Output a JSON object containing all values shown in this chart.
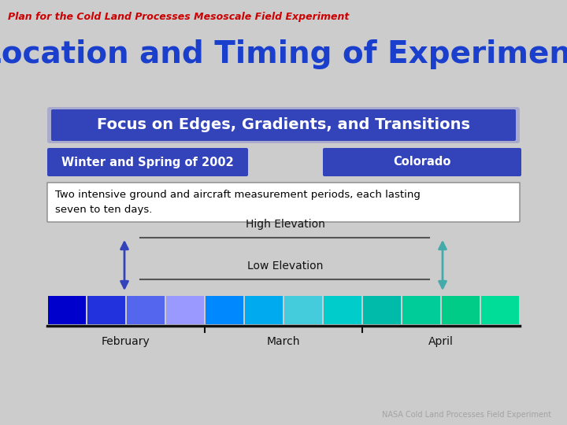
{
  "title_top": "Plan for the Cold Land Processes Mesoscale Field Experiment",
  "title_main": "Location and Timing of Experiment",
  "focus_text": "Focus on Edges, Gradients, and Transitions",
  "box1_text": "Winter and Spring of 2002",
  "box2_text": "Colorado",
  "body_text": "Two intensive ground and aircraft measurement periods, each lasting\nseven to ten days.",
  "high_elev_label": "High Elevation",
  "low_elev_label": "Low Elevation",
  "month_labels": [
    "February",
    "March",
    "April"
  ],
  "footer_text": "NASA Cold Land Processes Field Experiment",
  "bg_color": "#cccccc",
  "title_top_color": "#cc0000",
  "title_main_color": "#1a3fcc",
  "focus_bg": "#3344bb",
  "focus_text_color": "#ffffff",
  "box_bg": "#3344bb",
  "box_text_color": "#ffffff",
  "body_bg": "#ffffff",
  "body_text_color": "#000000",
  "bar_colors_feb": [
    "#0000cc",
    "#2233dd",
    "#5566ee",
    "#9999ff"
  ],
  "bar_colors_mar": [
    "#0088ff",
    "#00aaee",
    "#44ccdd",
    "#00cccc"
  ],
  "bar_colors_apr": [
    "#00bbaa",
    "#00cc99",
    "#00cc88",
    "#00dd99"
  ],
  "arrow_left_color": "#4455cc",
  "arrow_right_color": "#44aaaa"
}
